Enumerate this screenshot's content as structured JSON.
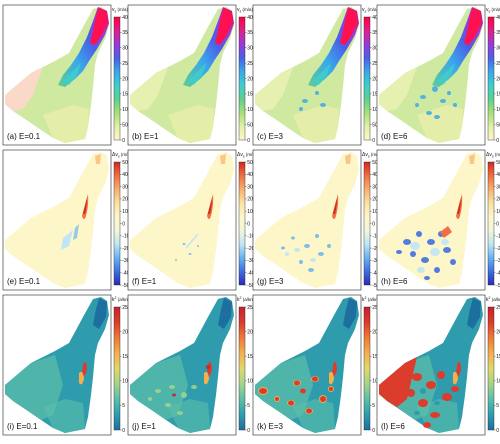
{
  "figure": {
    "rows": [
      {
        "colorbar": {
          "label": "v",
          "sub": "s",
          "sup": "",
          "unit": "(m/a)",
          "min": 0,
          "max": 400,
          "ticks": [
            0,
            50,
            100,
            150,
            200,
            250,
            300,
            350,
            400
          ],
          "tick_labels": [
            "0",
            "50",
            "100",
            "150",
            "200",
            "250",
            "300",
            "350",
            "400"
          ],
          "colors": [
            "#fff6c8",
            "#dff0a8",
            "#a6e07a",
            "#5fcf8f",
            "#3ccfcf",
            "#3aa8ea",
            "#4a60e8",
            "#9a3ad8",
            "#e0208a",
            "#ff0040"
          ]
        },
        "panels": [
          {
            "label": "(a) E=0.1"
          },
          {
            "label": "(b) E=1"
          },
          {
            "label": "(c) E=3"
          },
          {
            "label": "(d) E=6"
          }
        ]
      },
      {
        "colorbar": {
          "label": "Δv",
          "sub": "s",
          "sup": "",
          "unit": "(m/a)",
          "min": -50,
          "max": 50,
          "ticks": [
            -50,
            -40,
            -30,
            -20,
            -10,
            0,
            10,
            20,
            30,
            40,
            50
          ],
          "tick_labels": [
            "-50",
            "-40",
            "-30",
            "-20",
            "-10",
            "0",
            "10",
            "20",
            "30",
            "40",
            "50"
          ],
          "colors": [
            "#2a2ab8",
            "#3f6fe0",
            "#69b3f0",
            "#bfe6f5",
            "#f3f6d8",
            "#fdf6c8",
            "#fbe3a0",
            "#f6b070",
            "#ee7044",
            "#d0281e"
          ]
        },
        "panels": [
          {
            "label": "(e) E=0.1"
          },
          {
            "label": "(f) E=1"
          },
          {
            "label": "(g) E=3"
          },
          {
            "label": "(h) E=6"
          }
        ]
      },
      {
        "colorbar": {
          "label": "k",
          "sub": "",
          "sup": "2",
          "unit": "(a/km)",
          "min": 0,
          "max": 25,
          "ticks": [
            0,
            5,
            10,
            15,
            20,
            25
          ],
          "tick_labels": [
            "0",
            "5",
            "10",
            "15",
            "20",
            "25"
          ],
          "colors": [
            "#1d6fa0",
            "#2f9cae",
            "#5cbfa8",
            "#a5d48a",
            "#dfd86c",
            "#f4b04e",
            "#ee7a38",
            "#dc3c2c",
            "#c8202c"
          ]
        },
        "panels": [
          {
            "label": "(i) E=0.1"
          },
          {
            "label": "(j) E=1"
          },
          {
            "label": "(k) E=3"
          },
          {
            "label": "(l) E=6"
          }
        ]
      }
    ]
  },
  "chart_data": [
    {
      "type": "heatmap",
      "title": "",
      "quantity": "v_s",
      "unit": "(m/a)",
      "colorbar_range": [
        0,
        400
      ],
      "panels": [
        {
          "label": "(a) E=0.1",
          "E": 0.1
        },
        {
          "label": "(b) E=1",
          "E": 1
        },
        {
          "label": "(c) E=3",
          "E": 3
        },
        {
          "label": "(d) E=6",
          "E": 6
        }
      ]
    },
    {
      "type": "heatmap",
      "title": "",
      "quantity": "Δv_s",
      "unit": "(m/a)",
      "colorbar_range": [
        -50,
        50
      ],
      "panels": [
        {
          "label": "(e) E=0.1",
          "E": 0.1
        },
        {
          "label": "(f) E=1",
          "E": 1
        },
        {
          "label": "(g) E=3",
          "E": 3
        },
        {
          "label": "(h) E=6",
          "E": 6
        }
      ]
    },
    {
      "type": "heatmap",
      "title": "",
      "quantity": "k^2",
      "unit": "(a/km)",
      "colorbar_range": [
        0,
        25
      ],
      "panels": [
        {
          "label": "(i) E=0.1",
          "E": 0.1
        },
        {
          "label": "(j) E=1",
          "E": 1
        },
        {
          "label": "(k) E=3",
          "E": 3
        },
        {
          "label": "(l) E=6",
          "E": 6
        }
      ]
    }
  ]
}
